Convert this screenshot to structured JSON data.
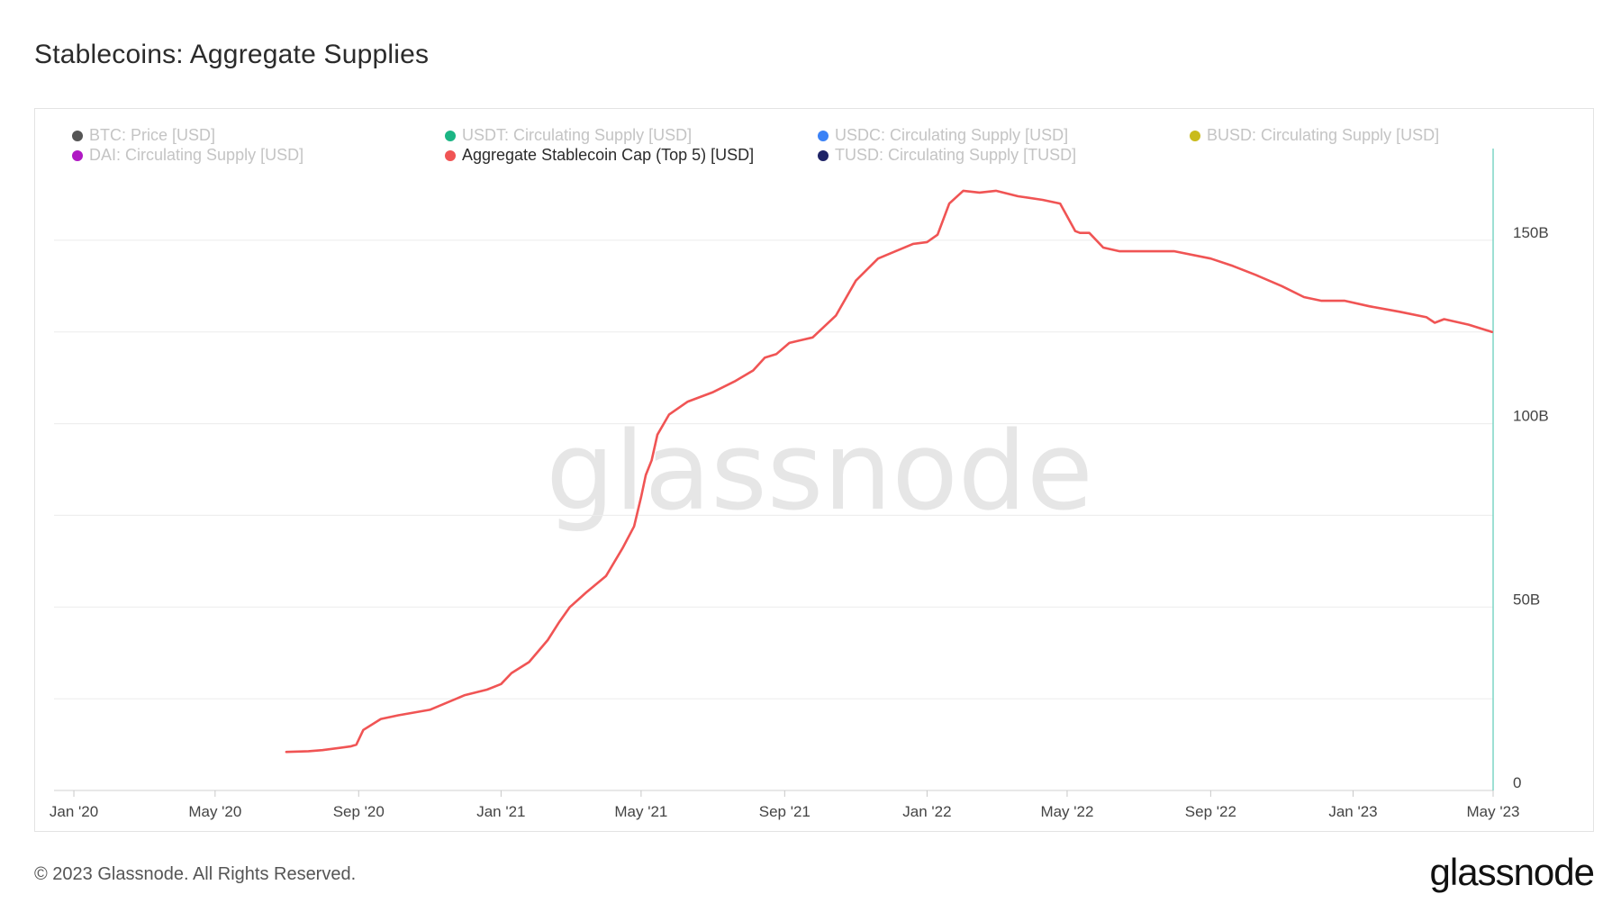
{
  "title": "Stablecoins: Aggregate Supplies",
  "footer": {
    "copyright": "© 2023 Glassnode. All Rights Reserved.",
    "logo": "glassnode"
  },
  "watermark": "glassnode",
  "legend": [
    {
      "label": "BTC: Price [USD]",
      "color": "#555555",
      "active": false
    },
    {
      "label": "USDT: Circulating Supply [USD]",
      "color": "#1bb584",
      "active": false
    },
    {
      "label": "USDC: Circulating Supply [USD]",
      "color": "#3b82f6",
      "active": false
    },
    {
      "label": "BUSD: Circulating Supply [USD]",
      "color": "#c9bb1c",
      "active": false
    },
    {
      "label": "DAI: Circulating Supply [USD]",
      "color": "#b018c4",
      "active": false
    },
    {
      "label": "Aggregate Stablecoin Cap (Top 5) [USD]",
      "color": "#f05454",
      "active": true
    },
    {
      "label": "TUSD: Circulating Supply [TUSD]",
      "color": "#1e2366",
      "active": false
    }
  ],
  "chart_data": {
    "type": "line",
    "title": "Stablecoins: Aggregate Supplies",
    "x_axis": {
      "ticks": [
        "Jan '20",
        "May '20",
        "Sep '20",
        "Jan '21",
        "May '21",
        "Sep '21",
        "Jan '22",
        "May '22",
        "Sep '22",
        "Jan '23",
        "May '23"
      ],
      "range": [
        "2019-12-15",
        "2023-05-01"
      ]
    },
    "y_axis": {
      "ticks": [
        "0",
        "50B",
        "100B",
        "150B"
      ],
      "tick_values": [
        0,
        50,
        100,
        150
      ],
      "unit": "B USD",
      "range": [
        0,
        175
      ],
      "position": "right"
    },
    "grid": true,
    "series": [
      {
        "name": "Aggregate Stablecoin Cap (Top 5) [USD]",
        "color": "#f05454",
        "x": [
          "2020-07-01",
          "2020-07-20",
          "2020-08-01",
          "2020-08-25",
          "2020-08-30",
          "2020-09-05",
          "2020-09-20",
          "2020-10-05",
          "2020-11-01",
          "2020-12-01",
          "2020-12-20",
          "2021-01-01",
          "2021-01-10",
          "2021-01-25",
          "2021-02-10",
          "2021-02-20",
          "2021-03-01",
          "2021-03-15",
          "2021-04-01",
          "2021-04-15",
          "2021-04-25",
          "2021-05-01",
          "2021-05-05",
          "2021-05-10",
          "2021-05-15",
          "2021-05-25",
          "2021-06-10",
          "2021-07-01",
          "2021-07-20",
          "2021-08-05",
          "2021-08-15",
          "2021-08-25",
          "2021-09-05",
          "2021-09-25",
          "2021-10-15",
          "2021-11-01",
          "2021-11-20",
          "2021-12-05",
          "2021-12-20",
          "2022-01-01",
          "2022-01-10",
          "2022-01-20",
          "2022-02-01",
          "2022-02-15",
          "2022-03-01",
          "2022-03-20",
          "2022-04-10",
          "2022-04-25",
          "2022-05-08",
          "2022-05-12",
          "2022-05-20",
          "2022-06-01",
          "2022-06-15",
          "2022-07-01",
          "2022-08-01",
          "2022-09-01",
          "2022-09-20",
          "2022-10-10",
          "2022-11-01",
          "2022-11-20",
          "2022-12-05",
          "2022-12-25",
          "2023-01-15",
          "2023-02-10",
          "2023-03-05",
          "2023-03-12",
          "2023-03-20",
          "2023-04-10",
          "2023-04-30"
        ],
        "values": [
          10.5,
          10.7,
          11.0,
          12.0,
          12.5,
          16.5,
          19.5,
          20.5,
          22.0,
          26.0,
          27.5,
          29.0,
          32.0,
          35.0,
          41.0,
          46.0,
          50.0,
          54.0,
          58.5,
          66.0,
          72.0,
          80.0,
          86.0,
          90.0,
          97.0,
          102.5,
          106.0,
          108.5,
          111.5,
          114.5,
          118.0,
          119.0,
          122.0,
          123.5,
          129.5,
          139.0,
          145.0,
          147.0,
          149.0,
          149.5,
          151.5,
          160.0,
          163.5,
          163.0,
          163.5,
          162.0,
          161.0,
          160.0,
          152.5,
          152.0,
          152.0,
          148.0,
          147.0,
          147.0,
          147.0,
          145.0,
          143.0,
          140.5,
          137.5,
          134.5,
          133.5,
          133.5,
          132.0,
          130.5,
          129.0,
          127.5,
          128.5,
          127.0,
          125.0
        ]
      }
    ]
  }
}
